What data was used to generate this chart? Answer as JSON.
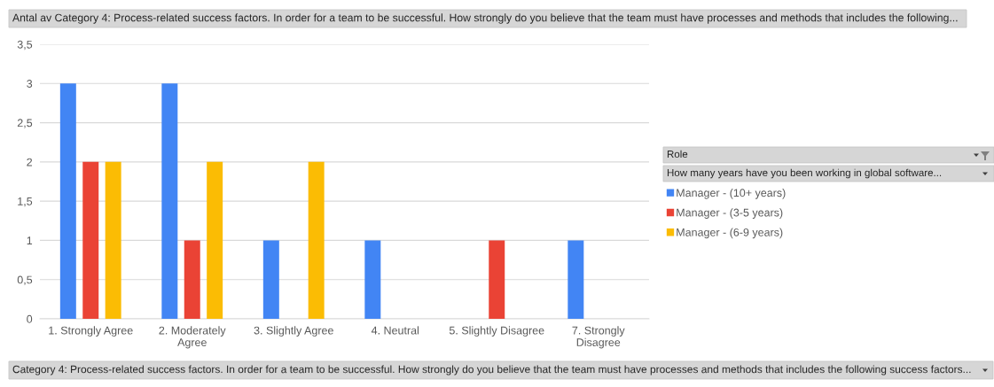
{
  "chart_data": {
    "type": "bar",
    "title": "Antal av Category 4: Process-related success factors. In order for a team to be successful. How strongly do you believe that the team must have processes and methods that includes the following...",
    "xlabel": "Category 4: Process-related success factors. In order for a team to be successful. How strongly do you believe that the team must have processes and methods that includes the following success factors...",
    "legend_title": "Role\nHow many years have you been working in global software...",
    "categories": [
      "1. Strongly Agree",
      "2. Moderately\nAgree",
      "3. Slightly Agree",
      "4. Neutral",
      "5. Slightly Disagree",
      "7. Strongly\nDisagree"
    ],
    "series": [
      {
        "name": "Manager - (10+ years)",
        "color": "#4285f4",
        "values": [
          3,
          3,
          1,
          1,
          null,
          1
        ]
      },
      {
        "name": "Manager - (3-5 years)",
        "color": "#ea4335",
        "values": [
          2,
          1,
          null,
          null,
          1,
          null
        ]
      },
      {
        "name": "Manager - (6-9 years)",
        "color": "#fbbc04",
        "values": [
          2,
          2,
          2,
          null,
          null,
          null
        ]
      }
    ],
    "ylim": [
      0,
      3.5
    ],
    "yticks": [
      0,
      {
        "value": 0.5,
        "label": "0,5"
      },
      1,
      {
        "value": 1.5,
        "label": "1,5"
      },
      2,
      {
        "value": 2.5,
        "label": "2,5"
      },
      3,
      {
        "value": 3.5,
        "label": "3,5"
      }
    ],
    "grid": "y",
    "legend": "right"
  }
}
